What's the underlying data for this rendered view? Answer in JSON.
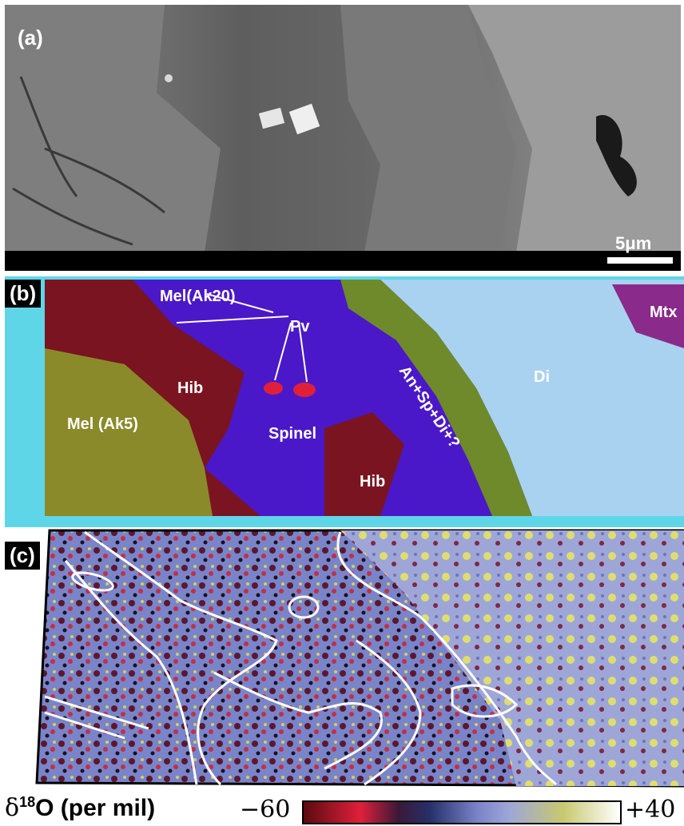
{
  "panel_a": {
    "tag": "(a)",
    "scale_bar_label": "5μm"
  },
  "panel_b": {
    "tag": "(b)",
    "labels": {
      "mel_ak20": "Mel(Ak20)",
      "pv": "Pv",
      "mtx": "Mtx",
      "hib_upper": "Hib",
      "hib_lower": "Hib",
      "an_sp_di": "An+Sp+Di+?",
      "di": "Di",
      "mel_ak5": "Mel (Ak5)",
      "spinel": "Spinel"
    }
  },
  "panel_c": {
    "tag": "(c)"
  },
  "colorbar": {
    "quantity_symbol": "δ",
    "quantity_super": "18",
    "quantity_rest": "O (per mil)",
    "min_label": "−60",
    "max_label": "+40"
  },
  "colors": {
    "hibonite": "#7a1420",
    "melilite": "#8a8a2a",
    "spinel": "#4a18c8",
    "diopside": "#a9d2f0",
    "anorthite_rim": "#6e8a2a",
    "overlay_line": "#ffffff"
  }
}
